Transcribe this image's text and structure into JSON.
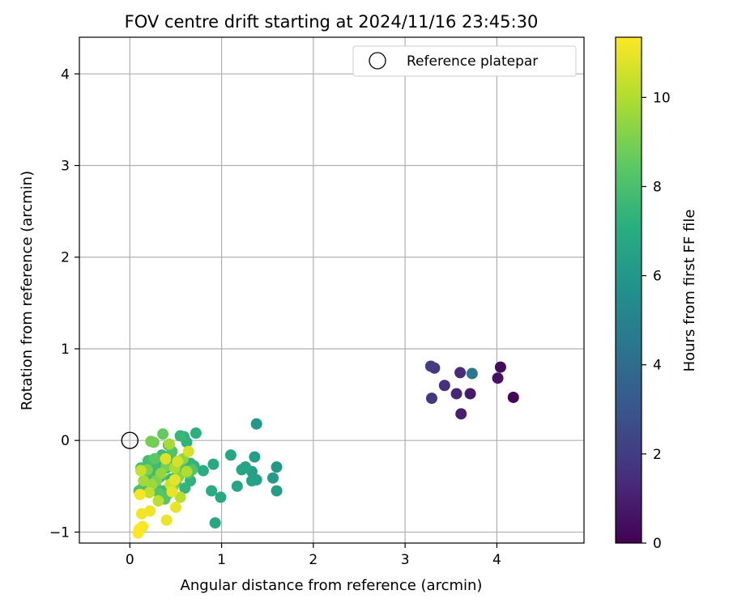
{
  "chart_data": {
    "type": "scatter",
    "title": "FOV centre drift starting at 2024/11/16 23:45:30",
    "xlabel": "Angular distance from reference (arcmin)",
    "ylabel": "Rotation from reference (arcmin)",
    "xlim": [
      -0.55,
      4.95
    ],
    "ylim": [
      -1.12,
      4.4
    ],
    "xticks": [
      0,
      1,
      2,
      3,
      4
    ],
    "yticks": [
      -1,
      0,
      1,
      2,
      3,
      4
    ],
    "grid": true,
    "legend": {
      "position": "top-right",
      "entries": [
        {
          "label": "Reference platepar",
          "marker": "open-circle",
          "x": 0,
          "y": 0
        }
      ]
    },
    "colorbar": {
      "label": "Hours from first FF file",
      "colormap": "viridis",
      "min": 0,
      "max": 11.35,
      "ticks": [
        0,
        2,
        4,
        6,
        8,
        10
      ]
    },
    "points": [
      {
        "x": 4.18,
        "y": 0.47,
        "c": 0.1
      },
      {
        "x": 4.04,
        "y": 0.8,
        "c": 0.3
      },
      {
        "x": 4.01,
        "y": 0.68,
        "c": 0.5
      },
      {
        "x": 3.71,
        "y": 0.51,
        "c": 0.8
      },
      {
        "x": 3.61,
        "y": 0.29,
        "c": 1.0
      },
      {
        "x": 3.56,
        "y": 0.51,
        "c": 1.2
      },
      {
        "x": 3.6,
        "y": 0.74,
        "c": 1.4
      },
      {
        "x": 3.43,
        "y": 0.6,
        "c": 1.6
      },
      {
        "x": 3.29,
        "y": 0.46,
        "c": 1.8
      },
      {
        "x": 3.32,
        "y": 0.79,
        "c": 1.9
      },
      {
        "x": 3.28,
        "y": 0.81,
        "c": 2.0
      },
      {
        "x": 3.73,
        "y": 0.73,
        "c": 4.5
      },
      {
        "x": 1.38,
        "y": 0.18,
        "c": 6.0
      },
      {
        "x": 1.6,
        "y": -0.29,
        "c": 6.1
      },
      {
        "x": 1.56,
        "y": -0.41,
        "c": 6.2
      },
      {
        "x": 1.6,
        "y": -0.55,
        "c": 6.3
      },
      {
        "x": 1.36,
        "y": -0.18,
        "c": 6.4
      },
      {
        "x": 1.33,
        "y": -0.34,
        "c": 6.4
      },
      {
        "x": 1.38,
        "y": -0.43,
        "c": 6.5
      },
      {
        "x": 1.33,
        "y": -0.44,
        "c": 6.5
      },
      {
        "x": 1.26,
        "y": -0.29,
        "c": 6.6
      },
      {
        "x": 1.22,
        "y": -0.32,
        "c": 6.6
      },
      {
        "x": 1.1,
        "y": -0.16,
        "c": 6.7
      },
      {
        "x": 1.17,
        "y": -0.5,
        "c": 6.7
      },
      {
        "x": 0.99,
        "y": -0.62,
        "c": 6.8
      },
      {
        "x": 0.93,
        "y": -0.9,
        "c": 6.8
      },
      {
        "x": 0.91,
        "y": -0.26,
        "c": 6.9
      },
      {
        "x": 0.89,
        "y": -0.55,
        "c": 7.0
      },
      {
        "x": 0.8,
        "y": -0.33,
        "c": 7.1
      },
      {
        "x": 0.72,
        "y": 0.08,
        "c": 7.2
      },
      {
        "x": 0.7,
        "y": -0.28,
        "c": 7.2
      },
      {
        "x": 0.66,
        "y": -0.44,
        "c": 7.3
      },
      {
        "x": 0.59,
        "y": 0.04,
        "c": 7.3
      },
      {
        "x": 0.62,
        "y": -0.02,
        "c": 7.3
      },
      {
        "x": 0.66,
        "y": -0.25,
        "c": 7.4
      },
      {
        "x": 0.6,
        "y": -0.52,
        "c": 7.4
      },
      {
        "x": 0.55,
        "y": 0.05,
        "c": 7.5
      },
      {
        "x": 0.52,
        "y": -0.38,
        "c": 7.5
      },
      {
        "x": 0.48,
        "y": -0.22,
        "c": 7.5
      },
      {
        "x": 0.45,
        "y": -0.42,
        "c": 7.6
      },
      {
        "x": 0.42,
        "y": -0.05,
        "c": 7.6
      },
      {
        "x": 0.4,
        "y": -0.3,
        "c": 7.6
      },
      {
        "x": 0.37,
        "y": -0.55,
        "c": 7.6
      },
      {
        "x": 0.35,
        "y": -0.16,
        "c": 7.7
      },
      {
        "x": 0.33,
        "y": -0.4,
        "c": 7.7
      },
      {
        "x": 0.3,
        "y": -0.25,
        "c": 7.7
      },
      {
        "x": 0.28,
        "y": -0.5,
        "c": 7.8
      },
      {
        "x": 0.25,
        "y": -0.33,
        "c": 7.8
      },
      {
        "x": 0.22,
        "y": -0.45,
        "c": 7.8
      },
      {
        "x": 0.2,
        "y": -0.22,
        "c": 7.9
      },
      {
        "x": 0.17,
        "y": -0.38,
        "c": 7.9
      },
      {
        "x": 0.14,
        "y": -0.52,
        "c": 7.9
      },
      {
        "x": 0.12,
        "y": -0.3,
        "c": 8.0
      },
      {
        "x": 0.1,
        "y": -0.55,
        "c": 8.0
      },
      {
        "x": 0.42,
        "y": -0.58,
        "c": 8.0
      },
      {
        "x": 0.5,
        "y": -0.46,
        "c": 8.1
      },
      {
        "x": 0.56,
        "y": -0.3,
        "c": 8.1
      },
      {
        "x": 0.64,
        "y": -0.36,
        "c": 8.1
      },
      {
        "x": 0.68,
        "y": -0.32,
        "c": 8.2
      },
      {
        "x": 0.46,
        "y": -0.12,
        "c": 8.2
      },
      {
        "x": 0.38,
        "y": -0.64,
        "c": 8.3
      },
      {
        "x": 0.32,
        "y": -0.58,
        "c": 8.3
      },
      {
        "x": 0.27,
        "y": -0.2,
        "c": 8.4
      },
      {
        "x": 0.36,
        "y": 0.07,
        "c": 8.6
      },
      {
        "x": 0.26,
        "y": -0.02,
        "c": 8.8
      },
      {
        "x": 0.23,
        "y": -0.01,
        "c": 8.9
      },
      {
        "x": 0.4,
        "y": -0.28,
        "c": 9.0
      },
      {
        "x": 0.29,
        "y": -0.44,
        "c": 9.0
      },
      {
        "x": 0.19,
        "y": -0.32,
        "c": 9.1
      },
      {
        "x": 0.47,
        "y": -0.51,
        "c": 9.2
      },
      {
        "x": 0.53,
        "y": -0.4,
        "c": 9.3
      },
      {
        "x": 0.58,
        "y": -0.2,
        "c": 9.4
      },
      {
        "x": 0.34,
        "y": -0.36,
        "c": 9.5
      },
      {
        "x": 0.24,
        "y": -0.48,
        "c": 9.6
      },
      {
        "x": 0.15,
        "y": -0.44,
        "c": 9.7
      },
      {
        "x": 0.43,
        "y": -0.04,
        "c": 9.8
      },
      {
        "x": 0.49,
        "y": -0.3,
        "c": 9.9
      },
      {
        "x": 0.62,
        "y": -0.34,
        "c": 10.0
      },
      {
        "x": 0.55,
        "y": -0.62,
        "c": 10.1
      },
      {
        "x": 0.31,
        "y": -0.66,
        "c": 10.2
      },
      {
        "x": 0.21,
        "y": -0.57,
        "c": 10.3
      },
      {
        "x": 0.12,
        "y": -0.33,
        "c": 10.4
      },
      {
        "x": 0.44,
        "y": -0.48,
        "c": 10.5
      },
      {
        "x": 0.52,
        "y": -0.23,
        "c": 10.6
      },
      {
        "x": 0.64,
        "y": -0.12,
        "c": 10.7
      },
      {
        "x": 0.39,
        "y": -0.2,
        "c": 10.8
      },
      {
        "x": 0.49,
        "y": -0.43,
        "c": 10.9
      },
      {
        "x": 0.46,
        "y": -0.56,
        "c": 10.95
      },
      {
        "x": 0.5,
        "y": -0.73,
        "c": 11.0
      },
      {
        "x": 0.4,
        "y": -0.87,
        "c": 11.05
      },
      {
        "x": 0.22,
        "y": -0.77,
        "c": 11.1
      },
      {
        "x": 0.13,
        "y": -0.8,
        "c": 11.15
      },
      {
        "x": 0.11,
        "y": -0.59,
        "c": 11.2
      },
      {
        "x": 0.14,
        "y": -0.94,
        "c": 11.25
      },
      {
        "x": 0.1,
        "y": -0.97,
        "c": 11.3
      },
      {
        "x": 0.09,
        "y": -1.01,
        "c": 11.35
      }
    ]
  }
}
